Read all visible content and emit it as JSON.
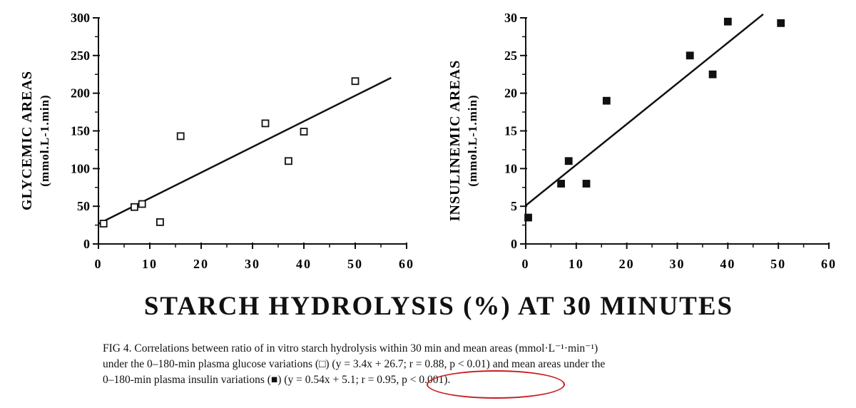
{
  "figure": {
    "xlabel": "STARCH HYDROLYSIS (%) AT 30 MINUTES",
    "caption_lines": [
      "FIG 4. Correlations between ratio of in vitro starch hydrolysis within 30 min and mean areas (mmol·L⁻¹·min⁻¹)",
      "under the 0–180-min plasma glucose variations (□) (y = 3.4x + 26.7; r = 0.88, p < 0.01) and mean areas under the",
      "0–180-min plasma insulin variations (■) (y = 0.54x + 5.1; r = 0.95, p < 0.001)."
    ],
    "highlight_color": "#c81e1e"
  },
  "chart_data": [
    {
      "type": "scatter",
      "ylabel": "GLYCEMIC AREAS",
      "yunit": "(mmol.L-1.min)",
      "xlim": [
        0,
        60
      ],
      "ylim": [
        0,
        300
      ],
      "xticks": [
        0,
        10,
        20,
        30,
        40,
        50,
        60
      ],
      "yticks": [
        0,
        50,
        100,
        150,
        200,
        250,
        300
      ],
      "marker": "open-square",
      "series": [
        {
          "x": [
            1,
            7,
            8.5,
            12,
            16,
            32.5,
            37,
            40,
            50
          ],
          "y": [
            27,
            49,
            53,
            29,
            143,
            160,
            110,
            149,
            216
          ]
        }
      ],
      "fit_line": {
        "slope": 3.4,
        "intercept": 26.7,
        "x_range": [
          0,
          57
        ]
      }
    },
    {
      "type": "scatter",
      "ylabel": "INSULINEMIC AREAS",
      "yunit": "(mmol.L-1.min)",
      "xlim": [
        0,
        60
      ],
      "ylim": [
        0,
        30
      ],
      "xticks": [
        0,
        10,
        20,
        30,
        40,
        50,
        60
      ],
      "yticks": [
        0,
        5,
        10,
        15,
        20,
        25,
        30
      ],
      "marker": "filled-square",
      "series": [
        {
          "x": [
            0.5,
            7,
            8.5,
            12,
            16,
            32.5,
            37,
            40,
            50.5
          ],
          "y": [
            3.5,
            8,
            11,
            8,
            19,
            25,
            22.5,
            29.5,
            29.3
          ]
        }
      ],
      "fit_line": {
        "slope": 0.54,
        "intercept": 5.1,
        "x_range": [
          0,
          47
        ]
      }
    }
  ]
}
